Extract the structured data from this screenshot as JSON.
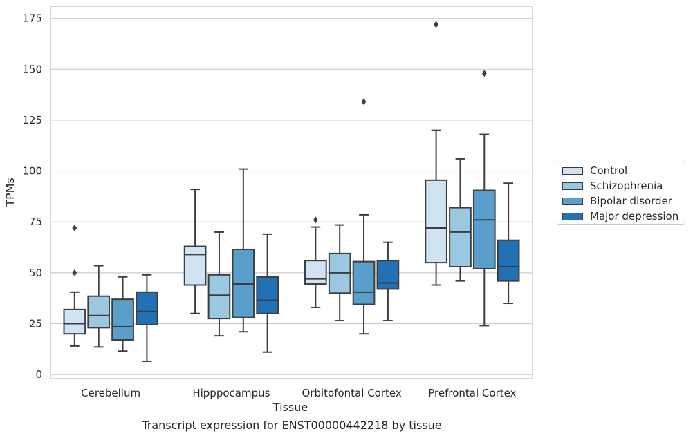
{
  "chart_data": {
    "type": "box",
    "xlabel": "Tissue",
    "ylabel": "TPMs",
    "caption": "Transcript expression for ENST00000442218 by tissue",
    "ylim": [
      -2,
      181
    ],
    "yticks": [
      0,
      25,
      50,
      75,
      100,
      125,
      150,
      175
    ],
    "grid": "horizontal",
    "legend_placement": "outside-right",
    "categories": [
      "Cerebellum",
      "Hipppocampus",
      "Orbitofontal Cortex",
      "Prefrontal Cortex"
    ],
    "series": [
      {
        "name": "Control",
        "color": "#d1e2f2",
        "boxes": [
          {
            "whislo": 14,
            "q1": 20,
            "med": 25,
            "q3": 32,
            "whishi": 40.5,
            "fliers": [
              50,
              72
            ]
          },
          {
            "whislo": 30,
            "q1": 44,
            "med": 59,
            "q3": 63,
            "whishi": 91,
            "fliers": []
          },
          {
            "whislo": 33,
            "q1": 44.5,
            "med": 47,
            "q3": 56,
            "whishi": 72.5,
            "fliers": [
              76
            ]
          },
          {
            "whislo": 44,
            "q1": 55,
            "med": 72,
            "q3": 95.5,
            "whishi": 120,
            "fliers": [
              172
            ]
          }
        ]
      },
      {
        "name": "Schizophrenia",
        "color": "#9ac8e0",
        "boxes": [
          {
            "whislo": 13.5,
            "q1": 23,
            "med": 29,
            "q3": 38.5,
            "whishi": 53.5,
            "fliers": []
          },
          {
            "whislo": 19,
            "q1": 27.5,
            "med": 39,
            "q3": 49,
            "whishi": 70,
            "fliers": []
          },
          {
            "whislo": 26.5,
            "q1": 40,
            "med": 50,
            "q3": 59.5,
            "whishi": 73.5,
            "fliers": []
          },
          {
            "whislo": 46,
            "q1": 53,
            "med": 70,
            "q3": 82,
            "whishi": 106,
            "fliers": []
          }
        ]
      },
      {
        "name": "Bipolar disorder",
        "color": "#5a9ecb",
        "boxes": [
          {
            "whislo": 11.5,
            "q1": 17,
            "med": 23.5,
            "q3": 37,
            "whishi": 48,
            "fliers": []
          },
          {
            "whislo": 21,
            "q1": 28,
            "med": 44.5,
            "q3": 61.5,
            "whishi": 101,
            "fliers": []
          },
          {
            "whislo": 20,
            "q1": 34.5,
            "med": 40.5,
            "q3": 55.5,
            "whishi": 78.5,
            "fliers": [
              134
            ]
          },
          {
            "whislo": 24,
            "q1": 52,
            "med": 76,
            "q3": 90.5,
            "whishi": 118,
            "fliers": [
              148
            ]
          }
        ]
      },
      {
        "name": "Major depression",
        "color": "#2271b5",
        "boxes": [
          {
            "whislo": 6.5,
            "q1": 24.5,
            "med": 31,
            "q3": 40.5,
            "whishi": 49,
            "fliers": []
          },
          {
            "whislo": 11,
            "q1": 30,
            "med": 36.5,
            "q3": 48,
            "whishi": 69,
            "fliers": []
          },
          {
            "whislo": 26.5,
            "q1": 42,
            "med": 45,
            "q3": 56,
            "whishi": 65,
            "fliers": []
          },
          {
            "whislo": 35,
            "q1": 46,
            "med": 53,
            "q3": 66,
            "whishi": 94,
            "fliers": []
          }
        ]
      }
    ]
  }
}
